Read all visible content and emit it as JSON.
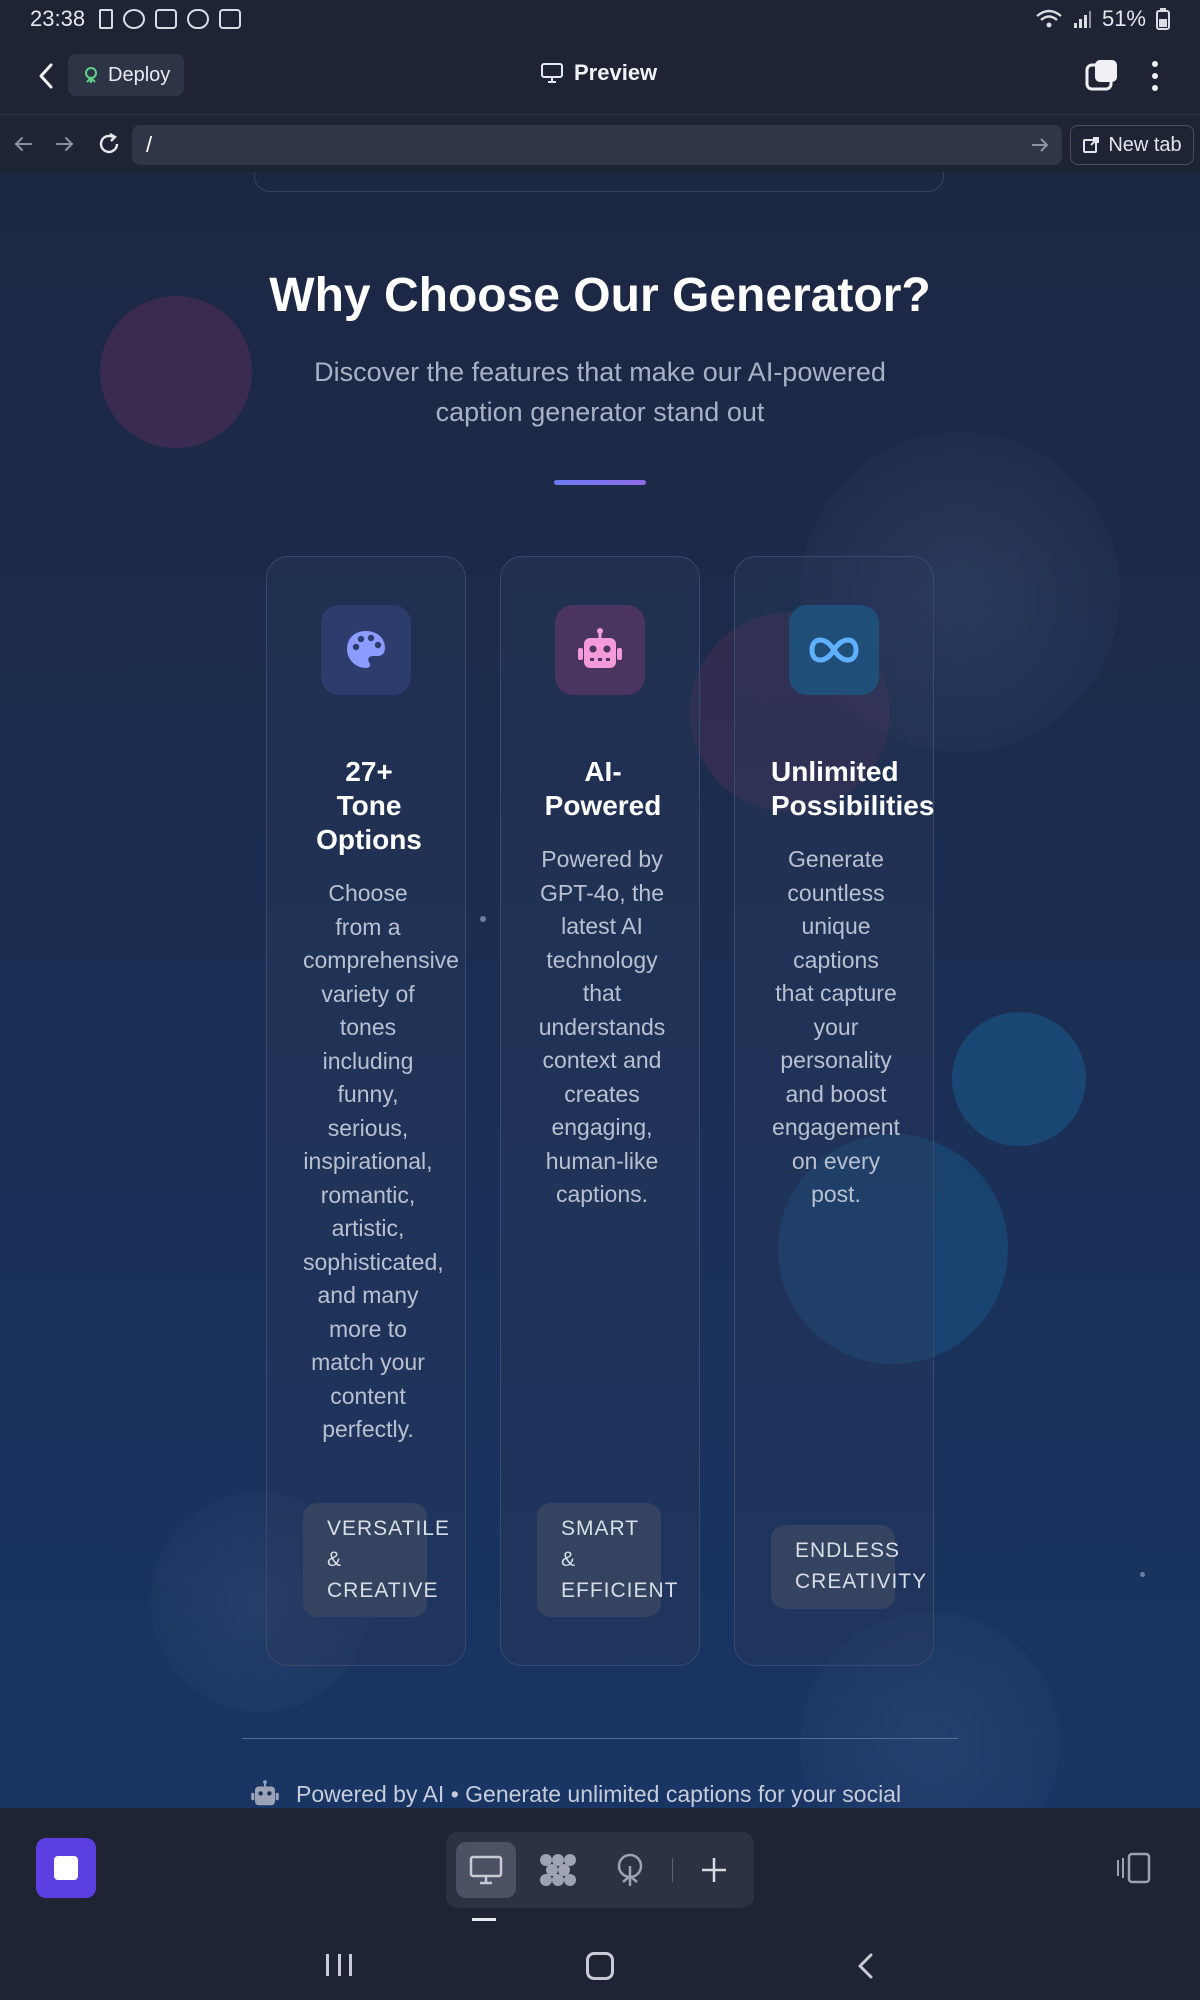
{
  "status_bar": {
    "time": "23:38",
    "battery": "51%"
  },
  "app_bar": {
    "deploy_label": "Deploy",
    "title": "Preview"
  },
  "url_bar": {
    "url": "/",
    "new_tab_label": "New tab"
  },
  "page": {
    "heading": "Why Choose Our Generator?",
    "subheading": "Discover the features that make our AI-powered caption generator stand out",
    "features": [
      {
        "icon": "palette-icon",
        "title": "27+\nTone\nOptions",
        "description": "Choose from a comprehensive variety of tones including funny, serious, inspirational, romantic, artistic, sophisticated, and many more to match your content perfectly.",
        "tag": "VERSATILE\n&\nCREATIVE"
      },
      {
        "icon": "robot-icon",
        "title": "AI-\nPowered",
        "description": "Powered by GPT-4o, the latest AI technology that understands context and creates engaging, human-like captions.",
        "tag": "SMART\n&\nEFFICIENT"
      },
      {
        "icon": "infinity-icon",
        "title": "Unlimited\nPossibilities",
        "description": "Generate countless unique captions that capture your personality and boost engagement on every post.",
        "tag": "ENDLESS\nCREATIVITY"
      }
    ],
    "footer_text": "Powered by AI • Generate unlimited captions for your social"
  },
  "colors": {
    "accent": "#5b3fe0",
    "palette_icon": "#8b9bff",
    "robot_icon": "#f39ad8",
    "infinity_icon": "#5fb0ff"
  }
}
